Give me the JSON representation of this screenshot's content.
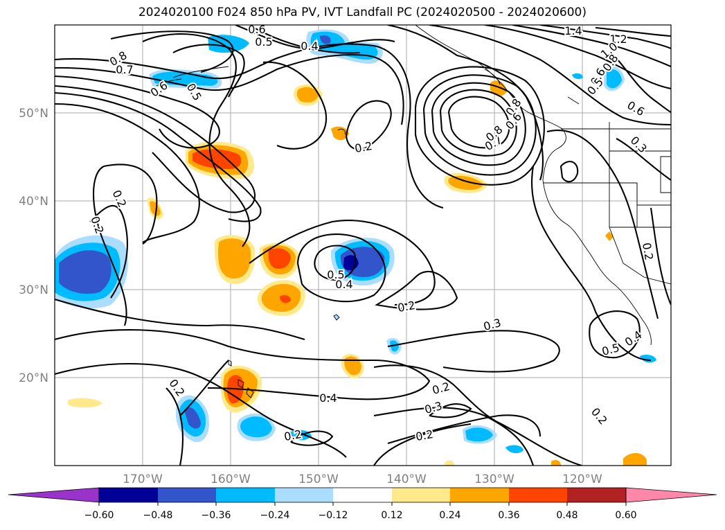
{
  "title": "2024020100 F024 850 hPa PV, IVT Landfall PC (2024020500 - 2024020600)",
  "map": {
    "lat_labels": [
      "50°N",
      "40°N",
      "30°N",
      "20°N"
    ],
    "lon_labels": [
      "170°W",
      "160°W",
      "150°W",
      "140°W",
      "130°W",
      "120°W"
    ],
    "contour_labels": [
      "0.6",
      "0.5",
      "0.4",
      "0.8",
      "0.7",
      "0.6",
      "0.5",
      "1.4",
      "1.2",
      "1.0",
      "0.8",
      "0.6",
      "0.5",
      "0.6",
      "0.8",
      "0.7",
      "0.8",
      "0.6",
      "0.3",
      "0.2",
      "0.2",
      "0.2",
      "0.5",
      "0.4",
      "0.2",
      "0.3",
      "0.2",
      "0.3",
      "0.4",
      "0.2",
      "0.2",
      "0.2",
      "0.5",
      "0.4",
      "0.2",
      "0.2"
    ],
    "colors": {
      "purple": "#9933cc",
      "navy": "#000099",
      "royal_blue": "#3355cc",
      "sky_blue": "#00bbff",
      "light_blue": "#aaddff",
      "light_yellow": "#ffe98a",
      "orange": "#ffa500",
      "red_orange": "#ff4400",
      "dark_red": "#b22222",
      "pink": "#ff88aa"
    }
  },
  "colorbar": {
    "ticks": [
      "−0.60",
      "−0.48",
      "−0.36",
      "−0.24",
      "−0.12",
      "0.12",
      "0.24",
      "0.36",
      "0.48",
      "0.60"
    ]
  }
}
